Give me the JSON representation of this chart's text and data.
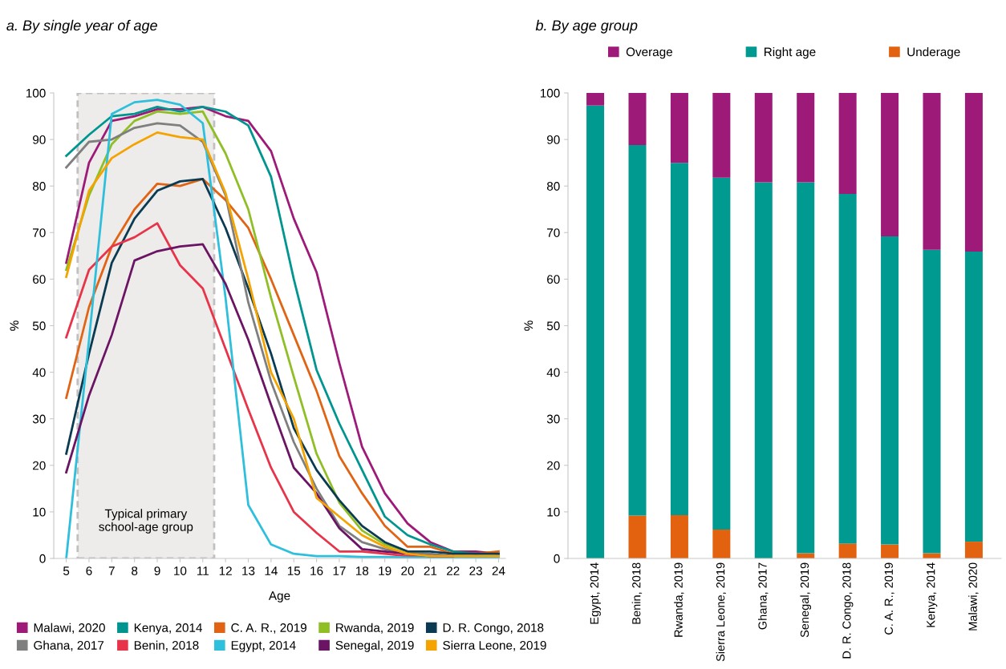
{
  "chart_data": [
    {
      "type": "line",
      "title": "a. By single year of age",
      "xlabel": "Age",
      "ylabel": "%",
      "x": [
        5,
        6,
        7,
        8,
        9,
        10,
        11,
        12,
        13,
        14,
        15,
        16,
        17,
        18,
        19,
        20,
        21,
        22,
        23,
        24
      ],
      "xlim": [
        4.45,
        24.3
      ],
      "xticks": [
        5,
        6,
        7,
        8,
        9,
        10,
        11,
        12,
        13,
        14,
        15,
        16,
        17,
        18,
        19,
        20,
        21,
        22,
        23,
        24
      ],
      "ylim": [
        0,
        100
      ],
      "yticks": [
        0,
        10,
        20,
        30,
        40,
        50,
        60,
        70,
        80,
        90,
        100
      ],
      "grid": false,
      "legend": "bottom",
      "bands": [
        {
          "axis": "x",
          "from": 5.5,
          "to": 11.5,
          "label": "Typical primary\nschool-age group",
          "color": "#edecea"
        }
      ],
      "series": [
        {
          "name": "Malawi, 2020",
          "color": "#9e1a78",
          "values": [
            63.5,
            85,
            94,
            95,
            96.5,
            96.5,
            97,
            95,
            94,
            87.5,
            73,
            61.5,
            42,
            24,
            14,
            7.5,
            3.5,
            1.5,
            1.5,
            1
          ]
        },
        {
          "name": "Kenya, 2014",
          "color": "#00958f",
          "values": [
            86.5,
            91,
            95,
            95.5,
            97,
            96,
            97,
            96,
            93,
            82,
            60,
            40.5,
            29,
            19,
            9,
            5,
            3,
            1.5,
            1,
            1
          ]
        },
        {
          "name": "C. A. R., 2019",
          "color": "#e06414",
          "values": [
            34.5,
            54,
            67,
            75,
            80.5,
            80,
            81.5,
            77,
            71,
            60,
            48,
            36,
            22,
            14,
            7,
            2.5,
            2.5,
            1,
            1,
            1.5
          ]
        },
        {
          "name": "Rwanda, 2019",
          "color": "#8fbe25",
          "values": [
            62,
            78,
            89,
            94,
            96,
            95.5,
            96,
            87,
            75,
            56,
            39,
            22.5,
            12,
            6,
            3,
            1.5,
            1,
            null,
            null,
            null
          ]
        },
        {
          "name": "D. R. Congo, 2018",
          "color": "#0b3b52",
          "values": [
            22.5,
            44,
            63.5,
            73,
            79,
            81,
            81.5,
            71,
            58,
            44,
            28,
            19,
            12.5,
            7,
            3.5,
            1.5,
            1.5,
            1,
            1,
            1
          ]
        },
        {
          "name": "Ghana, 2017",
          "color": "#7f7f7f",
          "values": [
            84,
            89.5,
            90,
            92.5,
            93.5,
            93,
            89.5,
            78,
            55,
            38,
            25,
            15,
            7,
            3.5,
            2,
            1,
            1,
            0.5,
            0.5,
            0.5
          ]
        },
        {
          "name": "Benin, 2018",
          "color": "#e8344a",
          "values": [
            47.5,
            62,
            67,
            69,
            72,
            63,
            58,
            45,
            32,
            19.5,
            10,
            5.5,
            1.5,
            1.5,
            1,
            0.5,
            0.5,
            null,
            null,
            null
          ]
        },
        {
          "name": "Egypt, 2014",
          "color": "#2ebfdc",
          "values": [
            0,
            47,
            95.5,
            98,
            98.5,
            97.5,
            93.5,
            56,
            11.5,
            3,
            1,
            0.5,
            0.5,
            0.3,
            0.3,
            0.2,
            0.2,
            0.2,
            0.2,
            0.2
          ]
        },
        {
          "name": "Senegal, 2019",
          "color": "#6b1464",
          "values": [
            18.5,
            35,
            48,
            64,
            66,
            67,
            67.5,
            59,
            47,
            33,
            19.5,
            14,
            6.5,
            2,
            1.5,
            1,
            0.5,
            0.5,
            null,
            null
          ]
        },
        {
          "name": "Sierra Leone, 2019",
          "color": "#f5a300",
          "values": [
            60.5,
            79,
            86,
            89,
            91.5,
            90.5,
            90,
            78.5,
            60,
            40,
            30,
            13,
            9,
            5,
            2.5,
            1,
            0.5,
            0.5,
            0.5,
            0.5
          ]
        }
      ]
    },
    {
      "type": "bar",
      "title": "b. By age group",
      "ylabel": "%",
      "stacked": true,
      "grid": false,
      "legend": "top",
      "categories": [
        "Egypt, 2014",
        "Benin, 2018",
        "Rwanda, 2019",
        "Sierra Leone, 2019",
        "Ghana, 2017",
        "Senegal, 2019",
        "D. R. Congo, 2018",
        "C. A. R., 2019",
        "Kenya, 2014",
        "Malawi, 2020"
      ],
      "ylim": [
        0,
        100
      ],
      "yticks": [
        0,
        10,
        20,
        30,
        40,
        50,
        60,
        70,
        80,
        90,
        100
      ],
      "series": [
        {
          "name": "Underage",
          "color": "#e2620f",
          "values": [
            0,
            9.2,
            9.3,
            6.2,
            0,
            1.1,
            3.2,
            3.0,
            1.1,
            3.6
          ]
        },
        {
          "name": "Right age",
          "color": "#009a90",
          "values": [
            97.3,
            79.6,
            75.7,
            75.6,
            80.8,
            79.7,
            75.1,
            66.2,
            65.2,
            62.3
          ]
        },
        {
          "name": "Overage",
          "color": "#9e1a78",
          "values": [
            2.7,
            11.2,
            15.0,
            18.2,
            19.2,
            19.2,
            21.7,
            30.8,
            33.7,
            34.1
          ]
        }
      ]
    }
  ]
}
